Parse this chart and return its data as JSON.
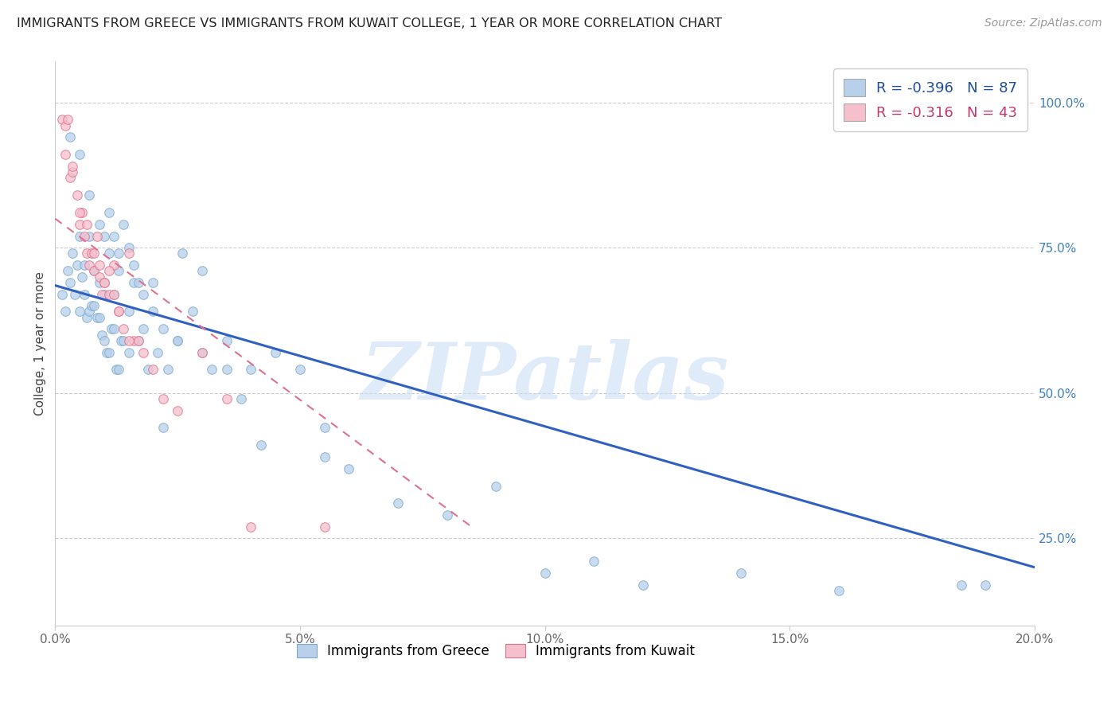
{
  "title": "IMMIGRANTS FROM GREECE VS IMMIGRANTS FROM KUWAIT COLLEGE, 1 YEAR OR MORE CORRELATION CHART",
  "source": "Source: ZipAtlas.com",
  "ylabel": "College, 1 year or more",
  "xlabel_tick_labels": [
    "0.0%",
    "5.0%",
    "10.0%",
    "15.0%",
    "20.0%"
  ],
  "xlabel_tick_values": [
    0.0,
    5.0,
    10.0,
    15.0,
    20.0
  ],
  "ylabel_tick_labels": [
    "25.0%",
    "50.0%",
    "75.0%",
    "100.0%"
  ],
  "ylabel_tick_values": [
    25.0,
    50.0,
    75.0,
    100.0
  ],
  "xlim": [
    0.0,
    20.0
  ],
  "ylim": [
    10.0,
    107.0
  ],
  "legend_items": [
    {
      "label": "R = -0.396   N = 87",
      "color": "#b8d0ea",
      "text_color": "#1f4e9c"
    },
    {
      "label": "R = -0.316   N = 43",
      "color": "#f5c0cc",
      "text_color": "#c0396e"
    }
  ],
  "watermark": "ZIPatlas",
  "watermark_color": "#ccdff5",
  "background_color": "#ffffff",
  "grid_color": "#cccccc",
  "blue_dot_color": "#b8d0ea",
  "blue_dot_edge_color": "#7aaad0",
  "pink_dot_color": "#f5c0cc",
  "pink_dot_edge_color": "#e07090",
  "blue_line_color": "#3060c0",
  "pink_line_color": "#e07090",
  "right_axis_label_color": "#4080c0",
  "dot_size": 70,
  "dot_alpha": 0.75,
  "greece_x": [
    0.15,
    0.2,
    0.25,
    0.3,
    0.35,
    0.4,
    0.45,
    0.5,
    0.5,
    0.55,
    0.6,
    0.6,
    0.65,
    0.7,
    0.7,
    0.75,
    0.8,
    0.8,
    0.85,
    0.9,
    0.9,
    0.95,
    1.0,
    1.0,
    1.05,
    1.1,
    1.1,
    1.15,
    1.2,
    1.2,
    1.25,
    1.3,
    1.3,
    1.35,
    1.4,
    1.5,
    1.5,
    1.6,
    1.7,
    1.8,
    1.9,
    2.0,
    2.1,
    2.2,
    2.3,
    2.5,
    2.6,
    2.8,
    3.0,
    3.2,
    3.5,
    3.8,
    4.0,
    4.5,
    5.0,
    5.5,
    6.0,
    7.0,
    8.0,
    9.0,
    10.0,
    11.0,
    12.0,
    14.0,
    16.0,
    18.5,
    0.3,
    0.5,
    0.7,
    0.9,
    1.0,
    1.1,
    1.2,
    1.3,
    1.4,
    1.5,
    1.6,
    1.7,
    1.8,
    2.0,
    2.2,
    2.5,
    3.0,
    3.5,
    4.2,
    5.5,
    19.0
  ],
  "greece_y": [
    67,
    64,
    71,
    69,
    74,
    67,
    72,
    64,
    77,
    70,
    67,
    72,
    63,
    64,
    77,
    65,
    65,
    71,
    63,
    63,
    69,
    60,
    59,
    67,
    57,
    57,
    74,
    61,
    61,
    67,
    54,
    54,
    71,
    59,
    59,
    64,
    57,
    69,
    59,
    61,
    54,
    64,
    57,
    44,
    54,
    59,
    74,
    64,
    71,
    54,
    59,
    49,
    54,
    57,
    54,
    39,
    37,
    31,
    29,
    34,
    19,
    21,
    17,
    19,
    16,
    17,
    94,
    91,
    84,
    79,
    77,
    81,
    77,
    74,
    79,
    75,
    72,
    69,
    67,
    69,
    61,
    59,
    57,
    54,
    41,
    44,
    17
  ],
  "kuwait_x": [
    0.15,
    0.2,
    0.25,
    0.3,
    0.35,
    0.45,
    0.5,
    0.55,
    0.6,
    0.65,
    0.7,
    0.75,
    0.8,
    0.85,
    0.9,
    0.95,
    1.0,
    1.1,
    1.2,
    1.3,
    1.4,
    1.5,
    1.6,
    1.7,
    1.8,
    2.0,
    2.2,
    2.5,
    3.0,
    3.5,
    4.0,
    0.2,
    0.35,
    0.5,
    0.65,
    0.8,
    0.9,
    1.0,
    1.1,
    1.2,
    1.3,
    1.5,
    5.5
  ],
  "kuwait_y": [
    97,
    96,
    97,
    87,
    88,
    84,
    79,
    81,
    77,
    74,
    72,
    74,
    71,
    77,
    70,
    67,
    69,
    67,
    72,
    64,
    61,
    74,
    59,
    59,
    57,
    54,
    49,
    47,
    57,
    49,
    27,
    91,
    89,
    81,
    79,
    74,
    72,
    69,
    71,
    67,
    64,
    59,
    27
  ],
  "blue_line_x0": 0.0,
  "blue_line_y0": 68.5,
  "blue_line_x1": 20.0,
  "blue_line_y1": 20.0,
  "pink_line_x0": 0.0,
  "pink_line_y0": 80.0,
  "pink_line_x1": 8.5,
  "pink_line_y1": 27.0
}
